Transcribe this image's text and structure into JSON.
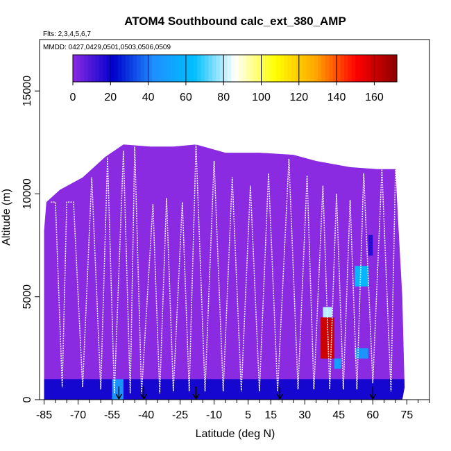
{
  "chart_data": {
    "type": "heatmap",
    "title": "ATOM4 Southbound calc_ext_380_AMP",
    "flights_label": "Flts: 2,3,4,5,6,7",
    "dates_label": "MMDD: 0427,0429,0501,0503,0506,0509",
    "xlabel": "Latitude (deg N)",
    "ylabel": "Altitude (m)",
    "xlim": [
      -87,
      85
    ],
    "ylim": [
      0,
      17500
    ],
    "x_ticks": [
      -85,
      -70,
      -55,
      -40,
      -25,
      -10,
      5,
      15,
      30,
      45,
      60,
      75
    ],
    "y_ticks": [
      0,
      5000,
      10000,
      15000
    ],
    "colorbar": {
      "min": 0,
      "max": 172,
      "ticks": [
        0,
        20,
        40,
        60,
        80,
        100,
        120,
        140,
        160
      ],
      "colors": [
        "#8a2be2",
        "#0000cd",
        "#1e90ff",
        "#00bfff",
        "#ffffff",
        "#ffff00",
        "#ffa500",
        "#ff0000",
        "#8b0000"
      ]
    },
    "domain_outline": [
      [
        -85,
        0
      ],
      [
        -85,
        8200
      ],
      [
        -84,
        9600
      ],
      [
        -78,
        10200
      ],
      [
        -68,
        10800
      ],
      [
        -58,
        11800
      ],
      [
        -50,
        12400
      ],
      [
        -38,
        12300
      ],
      [
        -28,
        12300
      ],
      [
        -18,
        12400
      ],
      [
        -5,
        12000
      ],
      [
        10,
        12000
      ],
      [
        25,
        11900
      ],
      [
        35,
        11600
      ],
      [
        50,
        11300
      ],
      [
        62,
        11200
      ],
      [
        70,
        11200
      ],
      [
        71,
        9000
      ],
      [
        73,
        5000
      ],
      [
        74,
        600
      ],
      [
        73,
        0
      ]
    ],
    "high_value_patches": [
      {
        "lat_range": [
          -55,
          -50
        ],
        "alt_range": [
          0,
          1000
        ],
        "value": 45
      },
      {
        "lat_range": [
          37,
          43
        ],
        "alt_range": [
          2000,
          4000
        ],
        "value": 160
      },
      {
        "lat_range": [
          38,
          42
        ],
        "alt_range": [
          4000,
          4500
        ],
        "value": 80
      },
      {
        "lat_range": [
          52,
          58
        ],
        "alt_range": [
          5500,
          6500
        ],
        "value": 60
      },
      {
        "lat_range": [
          52,
          58
        ],
        "alt_range": [
          2000,
          2500
        ],
        "value": 45
      },
      {
        "lat_range": [
          43,
          46
        ],
        "alt_range": [
          1500,
          2000
        ],
        "value": 50
      },
      {
        "lat_range": [
          58,
          60
        ],
        "alt_range": [
          7000,
          8000
        ],
        "value": 15
      }
    ],
    "low_level_band": {
      "alt_range": [
        0,
        1000
      ],
      "value": 18
    },
    "flight_track_profiles": [
      [
        -82,
        9600
      ],
      [
        -80,
        9600
      ],
      [
        -77,
        600
      ],
      [
        -75,
        9600
      ],
      [
        -72,
        9600
      ],
      [
        -68,
        600
      ],
      [
        -64,
        10800
      ],
      [
        -60,
        500
      ],
      [
        -57,
        11800
      ],
      [
        -54,
        300
      ],
      [
        -50,
        12100
      ],
      [
        -47,
        300
      ],
      [
        -45,
        12300
      ],
      [
        -42,
        300
      ],
      [
        -37,
        9500
      ],
      [
        -34,
        300
      ],
      [
        -31,
        9800
      ],
      [
        -28,
        400
      ],
      [
        -24,
        9600
      ],
      [
        -21,
        400
      ],
      [
        -18,
        12400
      ],
      [
        -14,
        400
      ],
      [
        -10,
        11600
      ],
      [
        -6,
        400
      ],
      [
        -2,
        10800
      ],
      [
        2,
        400
      ],
      [
        6,
        10400
      ],
      [
        10,
        400
      ],
      [
        14,
        11000
      ],
      [
        18,
        400
      ],
      [
        23,
        11700
      ],
      [
        27,
        500
      ],
      [
        31,
        10900
      ],
      [
        34,
        500
      ],
      [
        38,
        10400
      ],
      [
        41,
        500
      ],
      [
        44,
        10000
      ],
      [
        47,
        500
      ],
      [
        50,
        9700
      ],
      [
        53,
        500
      ],
      [
        56,
        11000
      ],
      [
        60,
        800
      ],
      [
        64,
        11200
      ],
      [
        68,
        400
      ],
      [
        70,
        11200
      ]
    ],
    "arrows_at_lat": [
      -52,
      -41,
      -18,
      19,
      60
    ]
  }
}
